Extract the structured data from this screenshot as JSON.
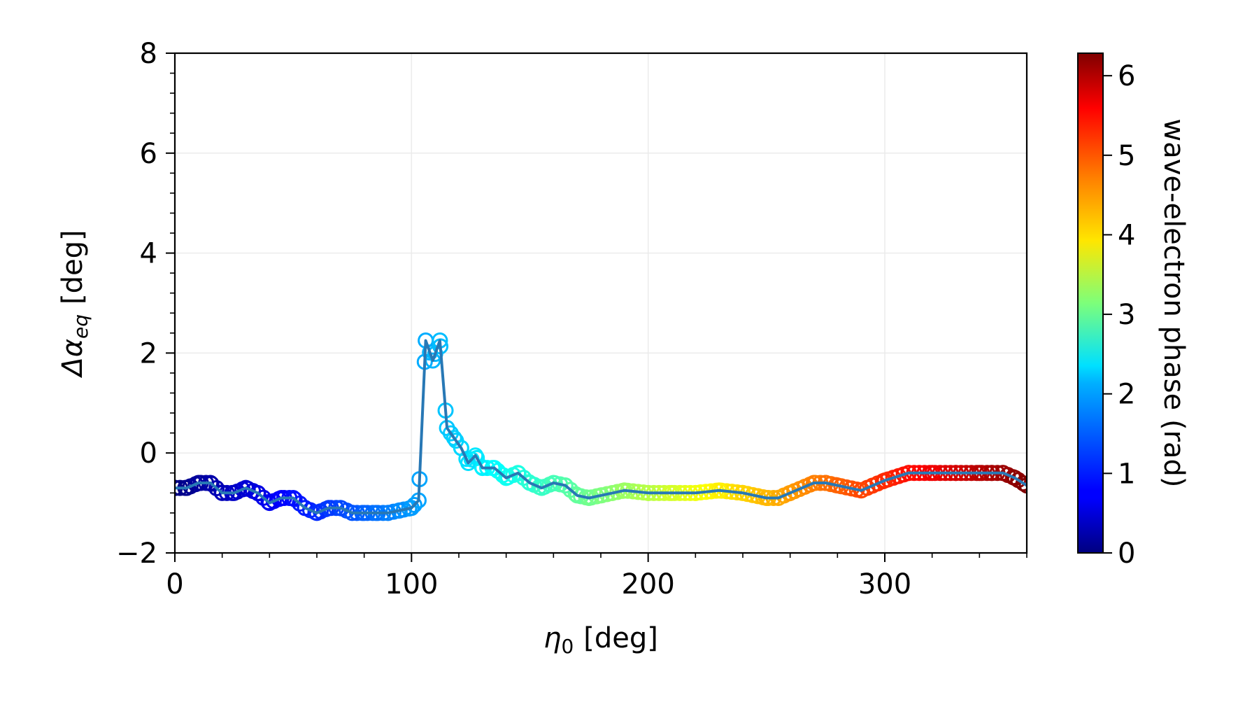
{
  "chart_data": {
    "type": "scatter",
    "title": "",
    "xlabel_main": "η",
    "xlabel_sub": "0",
    "xlabel_unit": "[deg]",
    "ylabel_main": "Δα",
    "ylabel_sub": "eq",
    "ylabel_unit": "[deg]",
    "xlim": [
      0,
      360
    ],
    "ylim": [
      -2,
      8
    ],
    "x_ticks": [
      0,
      100,
      200,
      300
    ],
    "x_tick_labels": [
      "0",
      "100",
      "200",
      "300"
    ],
    "y_ticks": [
      -2,
      0,
      2,
      4,
      6,
      8
    ],
    "y_tick_labels": [
      "−2",
      "0",
      "2",
      "4",
      "6",
      "8"
    ],
    "grid": true,
    "line_color": "#2878b5",
    "marker_style": "open circle colored by wave-electron phase",
    "colorbar": {
      "label": "wave-electron phase (rad)",
      "colormap": "jet",
      "range": [
        0,
        6.2832
      ],
      "ticks": [
        0,
        1,
        2,
        3,
        4,
        5,
        6
      ],
      "tick_labels": [
        "0",
        "1",
        "2",
        "3",
        "4",
        "5",
        "6"
      ]
    },
    "series": [
      {
        "x": [
          0,
          5,
          10,
          15,
          20,
          25,
          30,
          35,
          40,
          45,
          50,
          55,
          60,
          65,
          70,
          75,
          80,
          85,
          90,
          95,
          100,
          103,
          106,
          109,
          112,
          115,
          118,
          121,
          124,
          127,
          130,
          135,
          140,
          145,
          150,
          155,
          160,
          165,
          170,
          175,
          180,
          190,
          200,
          210,
          220,
          230,
          240,
          250,
          255,
          260,
          270,
          275,
          280,
          290,
          300,
          310,
          320,
          330,
          340,
          345,
          350,
          355,
          360
        ],
        "y": [
          -0.7,
          -0.7,
          -0.6,
          -0.6,
          -0.8,
          -0.8,
          -0.7,
          -0.8,
          -1.0,
          -0.9,
          -0.9,
          -1.1,
          -1.2,
          -1.1,
          -1.1,
          -1.2,
          -1.2,
          -1.2,
          -1.2,
          -1.15,
          -1.1,
          -0.95,
          2.25,
          1.85,
          2.25,
          0.5,
          0.3,
          0.1,
          -0.2,
          -0.05,
          -0.3,
          -0.3,
          -0.5,
          -0.4,
          -0.6,
          -0.7,
          -0.6,
          -0.65,
          -0.85,
          -0.9,
          -0.85,
          -0.75,
          -0.8,
          -0.8,
          -0.8,
          -0.75,
          -0.8,
          -0.9,
          -0.9,
          -0.8,
          -0.6,
          -0.6,
          -0.65,
          -0.75,
          -0.55,
          -0.4,
          -0.4,
          -0.4,
          -0.4,
          -0.4,
          -0.4,
          -0.5,
          -0.65
        ]
      }
    ]
  }
}
